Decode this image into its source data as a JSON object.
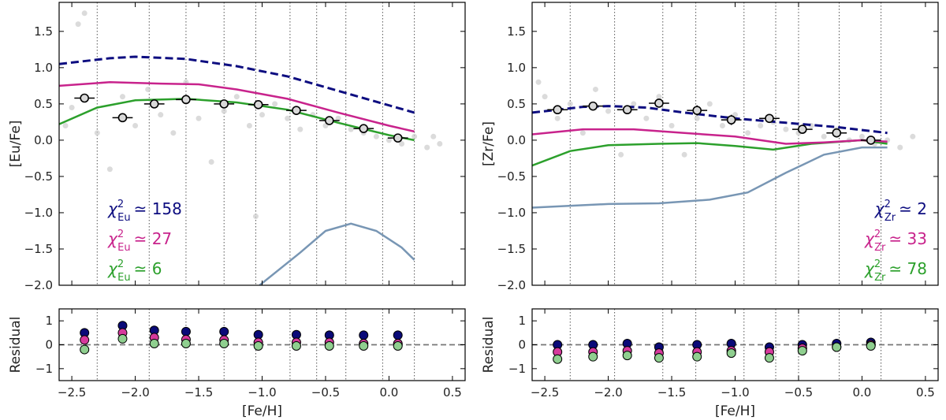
{
  "chart_data": [
    {
      "type": "line",
      "ylabel": "[Eu/Fe]",
      "xlim": [
        -2.6,
        0.6
      ],
      "ylim": [
        -2.0,
        1.9
      ],
      "yticks": [
        {
          "value": -2.0,
          "label": "−2.0"
        },
        {
          "value": -1.5,
          "label": "−1.5"
        },
        {
          "value": -1.0,
          "label": "−1.0"
        },
        {
          "value": -0.5,
          "label": "−0.5"
        },
        {
          "value": 0.0,
          "label": "0.0"
        },
        0.5,
        {
          "value": 1.0,
          "label": "1.0"
        },
        1.5
      ],
      "vlines": [
        -2.3,
        -1.89,
        -1.6,
        -1.3,
        -1.05,
        -0.78,
        -0.57,
        -0.34,
        -0.05,
        0.2
      ],
      "series": [
        {
          "style": "scatter",
          "color": "#cccccc",
          "x": [
            -2.55,
            -2.5,
            -2.45,
            -2.4,
            -2.3,
            -2.2,
            -2.1,
            -2.0,
            -1.9,
            -1.8,
            -1.7,
            -1.6,
            -1.5,
            -1.4,
            -1.3,
            -1.2,
            -1.1,
            -1.0,
            -0.9,
            -0.8,
            -0.7,
            -0.6,
            -0.5,
            -0.4,
            -0.3,
            -0.2,
            -0.1,
            0.0,
            0.1,
            0.2,
            0.3,
            0.35,
            0.4,
            -1.05
          ],
          "values": [
            0.2,
            0.45,
            1.6,
            1.75,
            0.1,
            -0.4,
            0.6,
            0.2,
            0.7,
            0.35,
            0.1,
            0.8,
            0.3,
            -0.3,
            0.4,
            0.6,
            0.2,
            0.35,
            0.5,
            0.3,
            0.15,
            0.35,
            0.2,
            0.3,
            0.15,
            0.1,
            0.05,
            0.0,
            -0.05,
            0.05,
            -0.1,
            0.05,
            -0.05,
            -1.05
          ]
        },
        {
          "style": "solid",
          "color": "#7896b4",
          "x": [
            -1.02,
            -0.7,
            -0.5,
            -0.3,
            -0.1,
            0.1,
            0.2
          ],
          "values": [
            -2.0,
            -1.55,
            -1.25,
            -1.15,
            -1.25,
            -1.48,
            -1.65
          ]
        },
        {
          "style": "solid",
          "color": "#2ca02c",
          "x": [
            -2.6,
            -2.3,
            -2.0,
            -1.6,
            -1.2,
            -0.8,
            -0.4,
            0.0,
            0.2
          ],
          "values": [
            0.22,
            0.45,
            0.55,
            0.57,
            0.52,
            0.42,
            0.24,
            0.07,
            0.0
          ]
        },
        {
          "style": "solid",
          "color": "#c8238c",
          "x": [
            -2.6,
            -2.2,
            -1.8,
            -1.5,
            -1.2,
            -0.8,
            -0.4,
            0.0,
            0.2
          ],
          "values": [
            0.75,
            0.8,
            0.78,
            0.77,
            0.7,
            0.57,
            0.38,
            0.2,
            0.12
          ]
        },
        {
          "style": "dashed",
          "color": "#0d0d80",
          "x": [
            -2.6,
            -2.2,
            -2.0,
            -1.6,
            -1.2,
            -0.8,
            -0.4,
            0.0,
            0.2
          ],
          "values": [
            1.05,
            1.13,
            1.15,
            1.12,
            1.02,
            0.88,
            0.68,
            0.48,
            0.38
          ]
        },
        {
          "style": "errorbar",
          "color": "#d9d9d9",
          "x": [
            -2.4,
            -2.1,
            -1.85,
            -1.6,
            -1.3,
            -1.03,
            -0.73,
            -0.47,
            -0.2,
            0.07
          ],
          "values": [
            0.58,
            0.31,
            0.5,
            0.56,
            0.5,
            0.49,
            0.41,
            0.27,
            0.16,
            0.03
          ],
          "xerr": [
            0.08,
            0.08,
            0.08,
            0.08,
            0.08,
            0.08,
            0.08,
            0.08,
            0.08,
            0.08
          ],
          "yerr": [
            0.05,
            0.04,
            0.05,
            0.05,
            0.04,
            0.04,
            0.05,
            0.04,
            0.04,
            0.04
          ]
        }
      ],
      "annotations": [
        {
          "symbol": "χ",
          "sup": "2",
          "sub": "Eu",
          "text": "≃ 158",
          "color": "#0d0d80"
        },
        {
          "symbol": "χ",
          "sup": "2",
          "sub": "Eu",
          "text": "≃ 27",
          "color": "#c8238c"
        },
        {
          "symbol": "χ",
          "sup": "2",
          "sub": "Eu",
          "text": "≃ 6",
          "color": "#2ca02c"
        }
      ]
    },
    {
      "type": "scatter",
      "ylabel": "Residual",
      "xlabel": "[Fe/H]",
      "xlim": [
        -2.6,
        0.6
      ],
      "ylim": [
        -1.5,
        1.5
      ],
      "yticks": [
        {
          "value": -1,
          "label": "−1"
        },
        0,
        1
      ],
      "xticks": [
        {
          "value": -2.5,
          "label": "−2.5"
        },
        {
          "value": -2.0,
          "label": "−2.0"
        },
        {
          "value": -1.5,
          "label": "−1.5"
        },
        {
          "value": -1.0,
          "label": "−1.0"
        },
        {
          "value": -0.5,
          "label": "−0.5"
        },
        {
          "value": 0.0,
          "label": "0.0"
        },
        0.5
      ],
      "vlines": [
        -2.3,
        -1.89,
        -1.6,
        -1.3,
        -1.05,
        -0.78,
        -0.57,
        -0.34,
        -0.05,
        0.2
      ],
      "hline": 0,
      "x": [
        -2.4,
        -2.1,
        -1.85,
        -1.6,
        -1.3,
        -1.03,
        -0.73,
        -0.47,
        -0.2,
        0.07
      ],
      "series": [
        {
          "color": "#0a0a78",
          "values": [
            0.5,
            0.8,
            0.6,
            0.55,
            0.55,
            0.42,
            0.42,
            0.4,
            0.4,
            0.4
          ]
        },
        {
          "color": "#d63a9c",
          "values": [
            0.2,
            0.5,
            0.3,
            0.22,
            0.2,
            0.1,
            0.1,
            0.1,
            0.05,
            0.05
          ]
        },
        {
          "color": "#8fcf8f",
          "values": [
            -0.2,
            0.25,
            0.05,
            0.05,
            0.05,
            -0.05,
            -0.05,
            -0.05,
            -0.05,
            -0.05
          ]
        }
      ]
    },
    {
      "type": "line",
      "ylabel": "[Zr/Fe]",
      "xlim": [
        -2.6,
        0.6
      ],
      "ylim": [
        -2.0,
        1.9
      ],
      "yticks": [
        {
          "value": -2.0,
          "label": "−2.0"
        },
        {
          "value": -1.5,
          "label": "−1.5"
        },
        {
          "value": -1.0,
          "label": "−1.0"
        },
        {
          "value": -0.5,
          "label": "−0.5"
        },
        {
          "value": 0.0,
          "label": "0.0"
        },
        0.5,
        {
          "value": 1.0,
          "label": "1.0"
        },
        1.5
      ],
      "vlines": [
        -2.3,
        -1.95,
        -1.57,
        -1.31,
        -0.93,
        -0.68,
        -0.5,
        -0.18,
        0.15
      ],
      "series": [
        {
          "style": "scatter",
          "color": "#cccccc",
          "x": [
            -2.55,
            -2.5,
            -2.4,
            -2.3,
            -2.2,
            -2.1,
            -2.0,
            -1.9,
            -1.8,
            -1.7,
            -1.6,
            -1.5,
            -1.4,
            -1.3,
            -1.2,
            -1.1,
            -1.0,
            -0.9,
            -0.8,
            -0.7,
            -0.6,
            -0.5,
            -0.4,
            -0.3,
            -0.2,
            -0.1,
            0.0,
            0.1,
            0.2,
            0.3,
            0.4
          ],
          "values": [
            0.8,
            0.6,
            0.3,
            0.5,
            0.1,
            0.7,
            0.4,
            -0.2,
            0.5,
            0.3,
            0.6,
            0.2,
            -0.2,
            0.3,
            0.5,
            0.2,
            0.35,
            0.1,
            0.2,
            0.25,
            0.15,
            0.1,
            0.2,
            0.05,
            0.15,
            0.0,
            0.05,
            -0.05,
            0.0,
            -0.1,
            0.05
          ]
        },
        {
          "style": "solid",
          "color": "#7896b4",
          "x": [
            -2.6,
            -2.0,
            -1.6,
            -1.2,
            -0.9,
            -0.6,
            -0.3,
            0.0,
            0.2
          ],
          "values": [
            -0.93,
            -0.88,
            -0.87,
            -0.82,
            -0.72,
            -0.45,
            -0.2,
            -0.1,
            -0.1
          ]
        },
        {
          "style": "solid",
          "color": "#2ca02c",
          "x": [
            -2.6,
            -2.3,
            -2.0,
            -1.6,
            -1.3,
            -1.0,
            -0.7,
            -0.4,
            0.0,
            0.2
          ],
          "values": [
            -0.35,
            -0.15,
            -0.07,
            -0.05,
            -0.04,
            -0.08,
            -0.13,
            -0.05,
            0.0,
            -0.05
          ]
        },
        {
          "style": "solid",
          "color": "#c8238c",
          "x": [
            -2.6,
            -2.2,
            -1.8,
            -1.4,
            -1.0,
            -0.6,
            -0.3,
            0.0,
            0.2
          ],
          "values": [
            0.08,
            0.15,
            0.15,
            0.1,
            0.05,
            -0.05,
            -0.03,
            0.0,
            -0.02
          ]
        },
        {
          "style": "dashed",
          "color": "#0d0d80",
          "x": [
            -2.6,
            -2.2,
            -2.0,
            -1.7,
            -1.4,
            -1.0,
            -0.6,
            -0.2,
            0.2
          ],
          "values": [
            0.38,
            0.46,
            0.47,
            0.45,
            0.38,
            0.3,
            0.24,
            0.18,
            0.1
          ]
        },
        {
          "style": "errorbar",
          "color": "#d9d9d9",
          "x": [
            -2.4,
            -2.12,
            -1.85,
            -1.6,
            -1.3,
            -1.03,
            -0.73,
            -0.47,
            -0.2,
            0.07
          ],
          "values": [
            0.42,
            0.47,
            0.42,
            0.51,
            0.41,
            0.28,
            0.3,
            0.15,
            0.1,
            0.0
          ],
          "xerr": [
            0.08,
            0.08,
            0.08,
            0.08,
            0.08,
            0.08,
            0.08,
            0.08,
            0.08,
            0.08
          ],
          "yerr": [
            0.06,
            0.06,
            0.05,
            0.06,
            0.07,
            0.07,
            0.05,
            0.04,
            0.04,
            0.03
          ]
        }
      ],
      "annotations": [
        {
          "symbol": "χ",
          "sup": "2",
          "sub": "Zr",
          "text": "≃ 2",
          "color": "#0d0d80"
        },
        {
          "symbol": "χ",
          "sup": "2",
          "sub": "Zr",
          "text": "≃ 33",
          "color": "#c8238c"
        },
        {
          "symbol": "χ",
          "sup": "2",
          "sub": "Zr",
          "text": "≃ 78",
          "color": "#2ca02c"
        }
      ]
    },
    {
      "type": "scatter",
      "ylabel": "Residual",
      "xlabel": "[Fe/H]",
      "xlim": [
        -2.6,
        0.6
      ],
      "ylim": [
        -1.5,
        1.5
      ],
      "yticks": [
        {
          "value": -1,
          "label": "−1"
        },
        0,
        1
      ],
      "xticks": [
        {
          "value": -2.5,
          "label": "−2.5"
        },
        {
          "value": -2.0,
          "label": "−2.0"
        },
        {
          "value": -1.5,
          "label": "−1.5"
        },
        {
          "value": -1.0,
          "label": "−1.0"
        },
        {
          "value": -0.5,
          "label": "−0.5"
        },
        {
          "value": 0.0,
          "label": "0.0"
        },
        0.5
      ],
      "vlines": [
        -2.3,
        -1.95,
        -1.57,
        -1.31,
        -0.93,
        -0.68,
        -0.5,
        -0.18,
        0.15
      ],
      "hline": 0,
      "x": [
        -2.4,
        -2.12,
        -1.85,
        -1.6,
        -1.3,
        -1.03,
        -0.73,
        -0.47,
        -0.2,
        0.07
      ],
      "series": [
        {
          "color": "#0a0a78",
          "values": [
            0.0,
            0.0,
            0.05,
            -0.1,
            0.0,
            0.05,
            -0.1,
            0.0,
            0.05,
            0.1
          ]
        },
        {
          "color": "#d63a9c",
          "values": [
            -0.3,
            -0.3,
            -0.25,
            -0.35,
            -0.3,
            -0.25,
            -0.3,
            -0.15,
            -0.1,
            0.0
          ]
        },
        {
          "color": "#8fcf8f",
          "values": [
            -0.6,
            -0.5,
            -0.45,
            -0.55,
            -0.5,
            -0.35,
            -0.55,
            -0.25,
            -0.1,
            -0.05
          ]
        }
      ]
    }
  ]
}
